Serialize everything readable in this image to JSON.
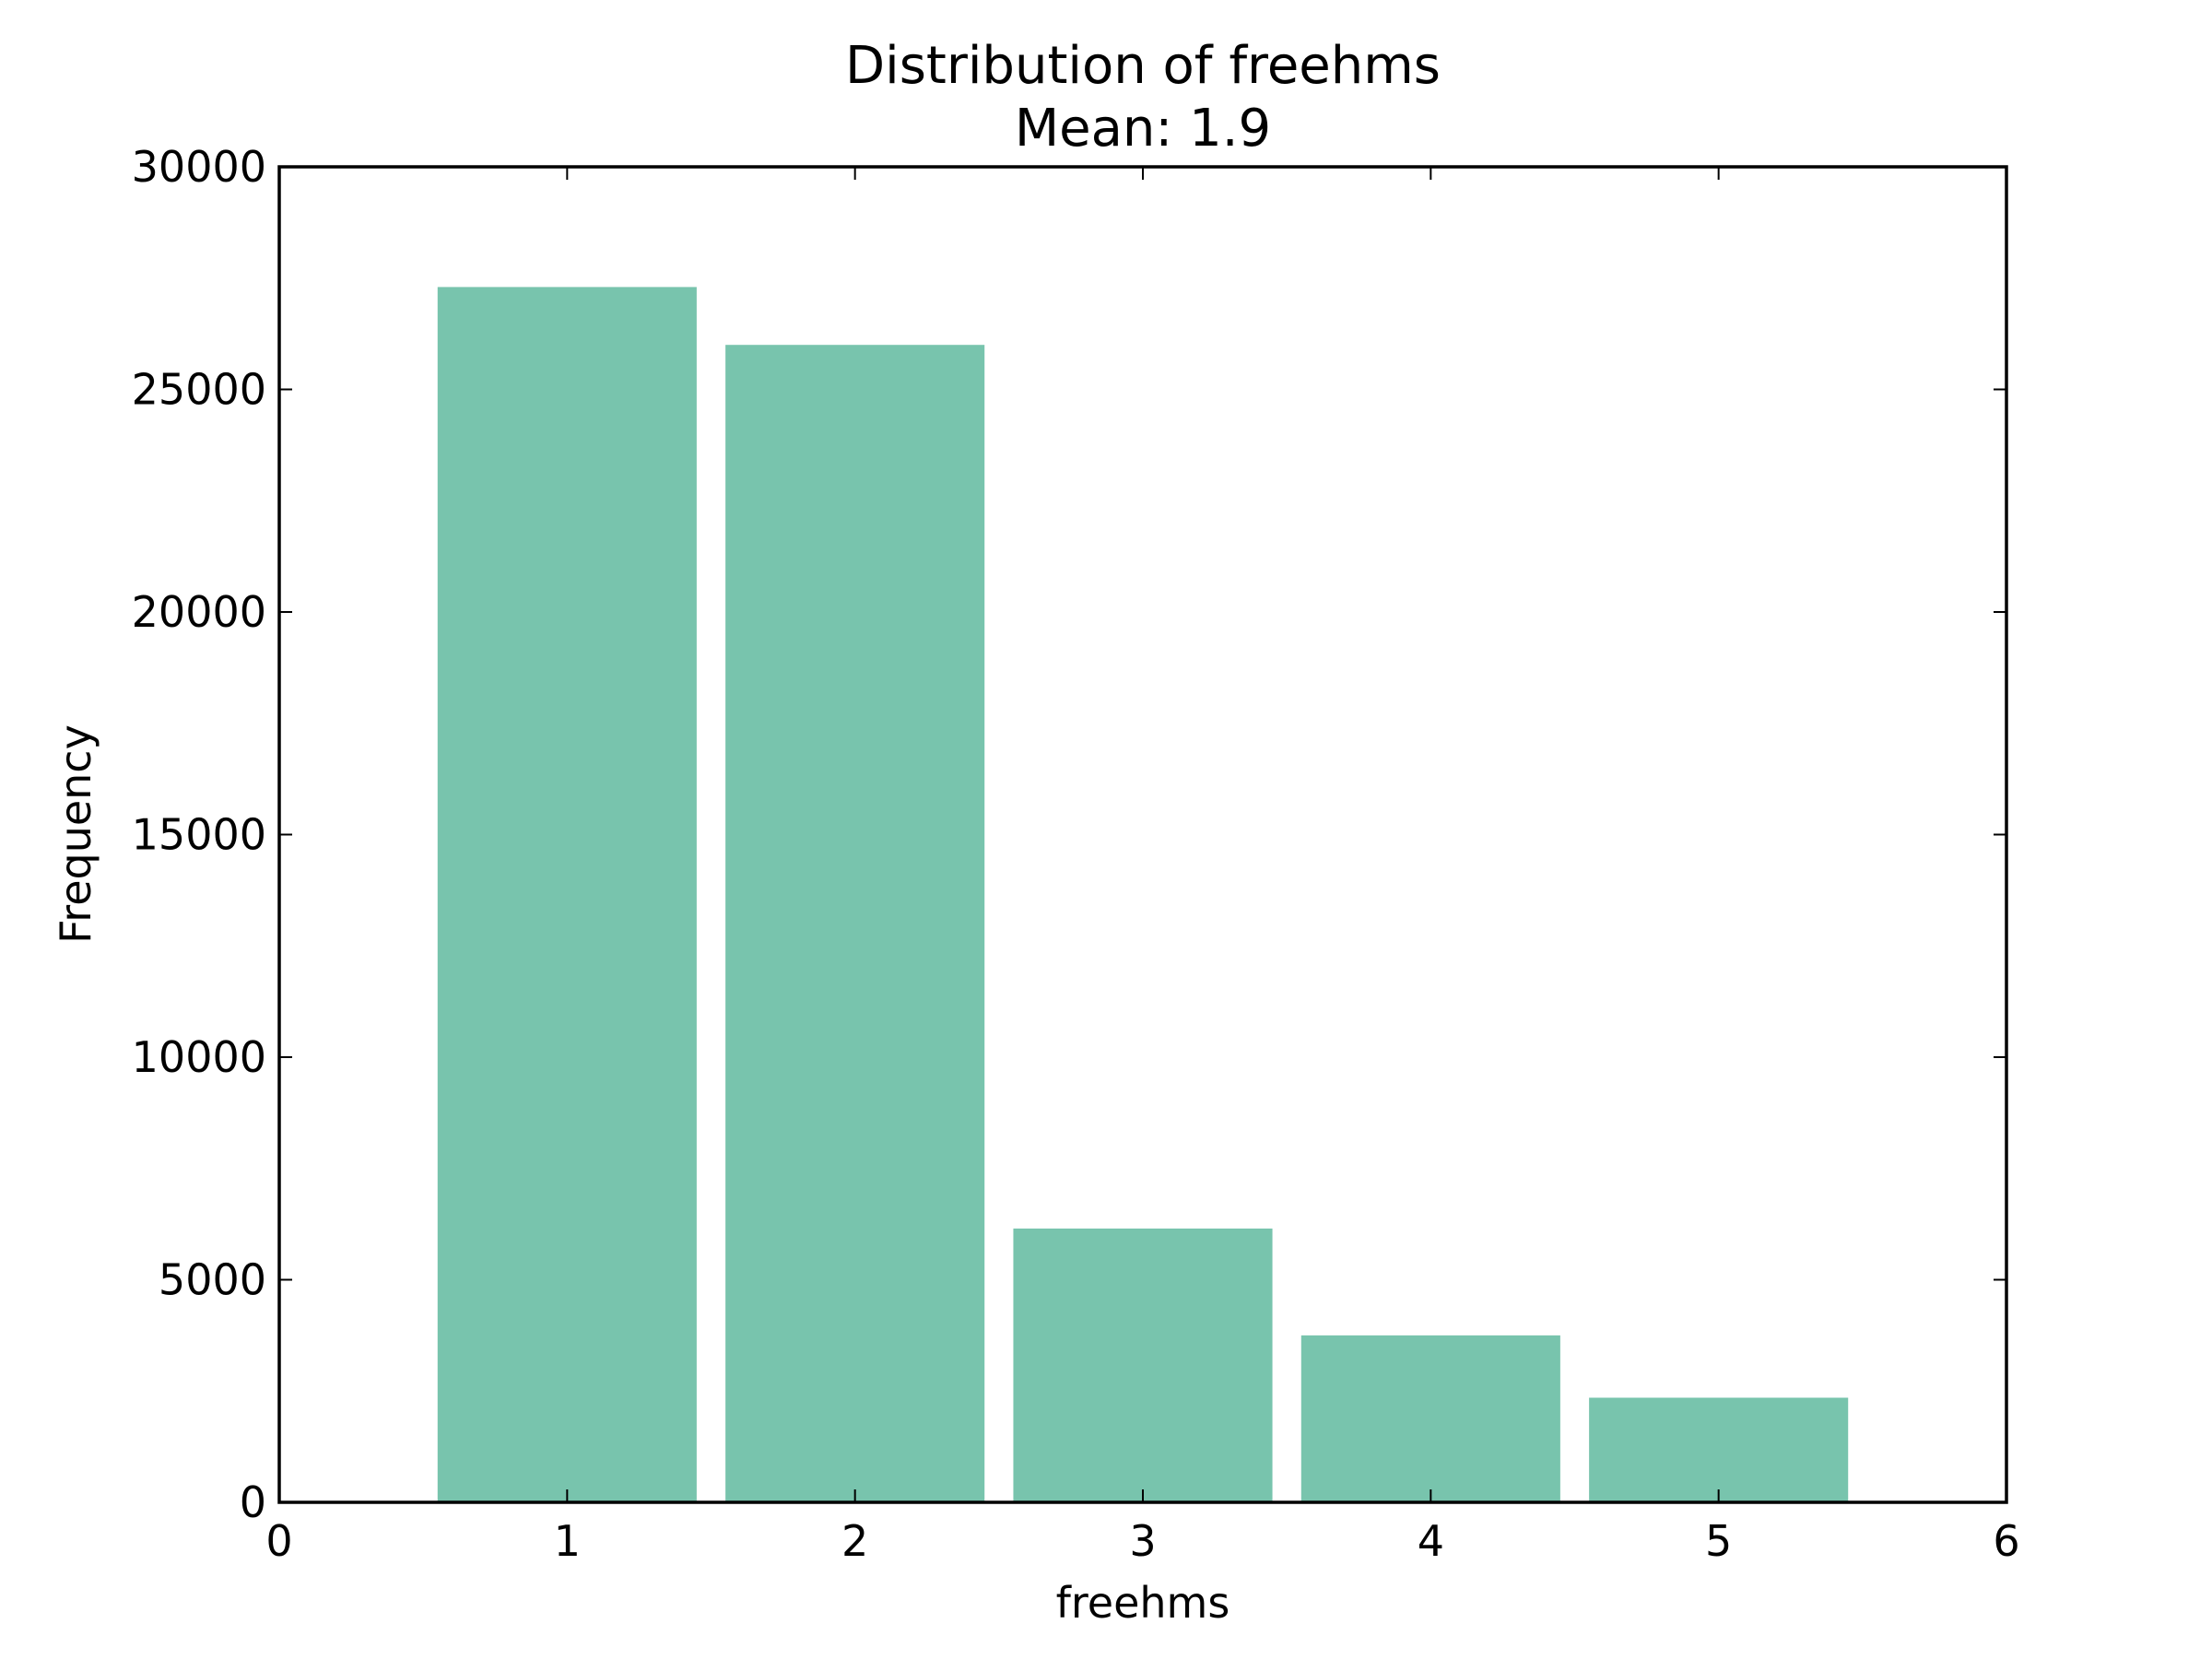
{
  "chart_data": {
    "type": "bar",
    "title": "Distribution of freehms",
    "subtitle": "Mean: 1.9",
    "xlabel": "freehms",
    "ylabel": "Frequency",
    "categories": [
      1,
      2,
      3,
      4,
      5
    ],
    "values": [
      27300,
      26000,
      6150,
      3750,
      2350
    ],
    "bar_width": 0.9,
    "xlim": [
      0,
      6
    ],
    "ylim": [
      0,
      30000
    ],
    "xticks": [
      0,
      1,
      2,
      3,
      4,
      5,
      6
    ],
    "yticks": [
      0,
      5000,
      10000,
      15000,
      20000,
      25000,
      30000
    ],
    "grid": false,
    "bar_color": "#78c4ad"
  }
}
